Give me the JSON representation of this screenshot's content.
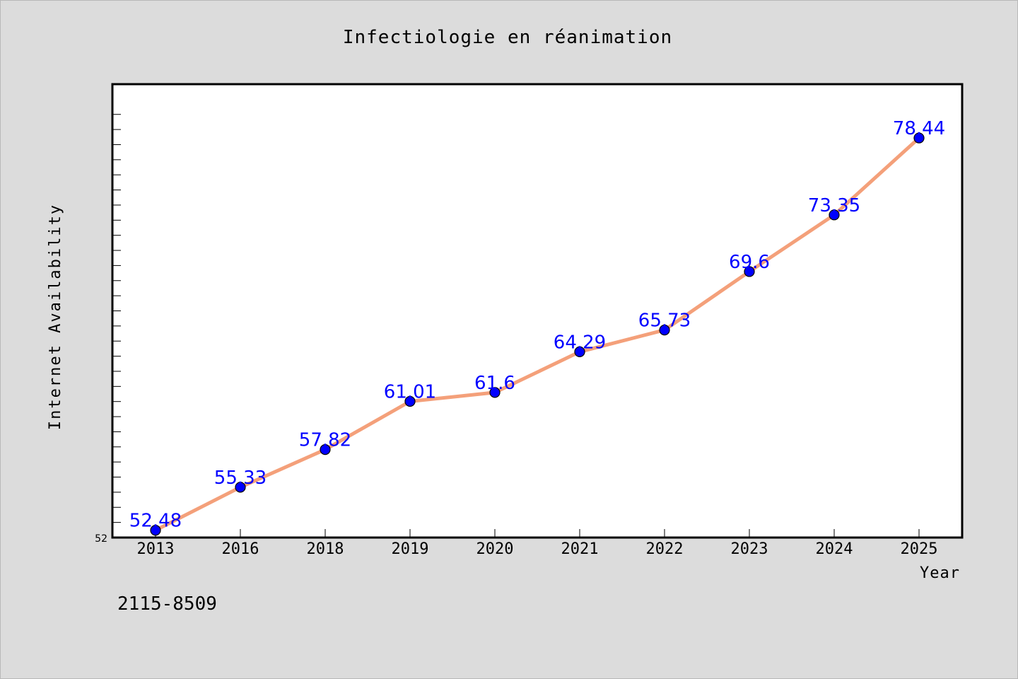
{
  "chart_data": {
    "type": "line",
    "title": "Infectiologie en réanimation",
    "xlabel": "Year",
    "ylabel": "Internet Availability",
    "categories": [
      "2013",
      "2016",
      "2018",
      "2019",
      "2020",
      "2021",
      "2022",
      "2023",
      "2024",
      "2025"
    ],
    "series": [
      {
        "values": [
          52.48,
          55.33,
          57.82,
          61.01,
          61.6,
          64.29,
          65.73,
          69.6,
          73.35,
          78.44
        ],
        "labels": [
          "52.48",
          "55.33",
          "57.82",
          "61.01",
          "61.6",
          "64.29",
          "65.73",
          "69.6",
          "73.35",
          "78.44"
        ]
      }
    ],
    "ylim": [
      52,
      82
    ],
    "y_tick_label": "52",
    "grid": false,
    "line_color": "#f4a07a",
    "marker_color": "#0000ff",
    "label_color": "#0000ff"
  },
  "footnote": "2115-8509"
}
